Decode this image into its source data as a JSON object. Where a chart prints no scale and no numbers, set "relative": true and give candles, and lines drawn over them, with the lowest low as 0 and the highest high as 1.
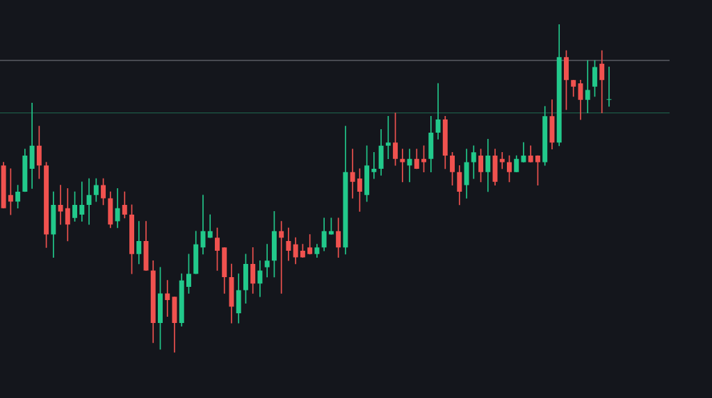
{
  "chart_data": {
    "type": "candlestick",
    "relative": true,
    "categories": [
      null,
      null,
      null,
      null,
      null,
      null,
      null,
      null,
      null,
      null,
      null,
      null,
      null,
      null,
      null,
      null,
      null,
      null,
      null,
      null,
      null,
      null,
      null,
      null,
      null,
      null,
      null,
      null,
      null,
      null,
      null,
      null,
      null,
      null,
      null,
      null,
      null,
      null,
      null,
      null,
      null,
      null,
      null,
      null,
      null,
      null,
      null,
      null,
      null,
      null,
      null,
      null,
      null,
      null,
      null,
      null,
      null,
      null,
      null,
      null,
      null,
      null,
      null,
      null,
      null,
      null,
      null,
      null,
      null,
      null,
      null,
      null,
      null,
      null,
      null,
      null,
      null,
      null,
      null,
      null,
      null,
      null,
      null,
      null,
      null,
      null,
      null,
      null,
      null,
      null,
      null,
      null,
      null,
      null
    ],
    "ohlc": [
      [
        0.57,
        0.58,
        0.44,
        0.44
      ],
      [
        0.48,
        0.56,
        0.42,
        0.46
      ],
      [
        0.46,
        0.51,
        0.44,
        0.49
      ],
      [
        0.49,
        0.62,
        0.49,
        0.6
      ],
      [
        0.56,
        0.76,
        0.5,
        0.63
      ],
      [
        0.63,
        0.69,
        0.53,
        0.57
      ],
      [
        0.57,
        0.58,
        0.32,
        0.36
      ],
      [
        0.36,
        0.49,
        0.29,
        0.45
      ],
      [
        0.45,
        0.51,
        0.39,
        0.43
      ],
      [
        0.44,
        0.5,
        0.34,
        0.39
      ],
      [
        0.41,
        0.49,
        0.4,
        0.45
      ],
      [
        0.42,
        0.52,
        0.4,
        0.45
      ],
      [
        0.45,
        0.53,
        0.39,
        0.48
      ],
      [
        0.48,
        0.53,
        0.46,
        0.51
      ],
      [
        0.51,
        0.53,
        0.45,
        0.47
      ],
      [
        0.47,
        0.49,
        0.38,
        0.39
      ],
      [
        0.4,
        0.5,
        0.38,
        0.44
      ],
      [
        0.45,
        0.49,
        0.41,
        0.42
      ],
      [
        0.42,
        0.45,
        0.24,
        0.3
      ],
      [
        0.3,
        0.4,
        0.27,
        0.34
      ],
      [
        0.34,
        0.4,
        0.25,
        0.25
      ],
      [
        0.25,
        0.28,
        0.03,
        0.09
      ],
      [
        0.09,
        0.26,
        0.01,
        0.18
      ],
      [
        0.18,
        0.22,
        0.11,
        0.16
      ],
      [
        0.17,
        0.17,
        0,
        0.09
      ],
      [
        0.09,
        0.24,
        0.08,
        0.22
      ],
      [
        0.2,
        0.3,
        0.18,
        0.24
      ],
      [
        0.24,
        0.37,
        0.24,
        0.33
      ],
      [
        0.32,
        0.48,
        0.3,
        0.37
      ],
      [
        0.35,
        0.42,
        0.35,
        0.37
      ],
      [
        0.35,
        0.38,
        0.25,
        0.31
      ],
      [
        0.32,
        0.32,
        0.18,
        0.23
      ],
      [
        0.23,
        0.27,
        0.09,
        0.14
      ],
      [
        0.12,
        0.24,
        0.09,
        0.19
      ],
      [
        0.19,
        0.3,
        0.15,
        0.27
      ],
      [
        0.27,
        0.32,
        0.18,
        0.21
      ],
      [
        0.21,
        0.28,
        0.17,
        0.25
      ],
      [
        0.26,
        0.33,
        0.23,
        0.28
      ],
      [
        0.28,
        0.43,
        0.23,
        0.37
      ],
      [
        0.37,
        0.4,
        0.18,
        0.35
      ],
      [
        0.34,
        0.38,
        0.28,
        0.31
      ],
      [
        0.33,
        0.35,
        0.27,
        0.29
      ],
      [
        0.31,
        0.33,
        0.29,
        0.29
      ],
      [
        0.32,
        0.36,
        0.3,
        0.3
      ],
      [
        0.3,
        0.33,
        0.29,
        0.32
      ],
      [
        0.32,
        0.41,
        0.31,
        0.37
      ],
      [
        0.36,
        0.41,
        0.36,
        0.37
      ],
      [
        0.37,
        0.41,
        0.29,
        0.32
      ],
      [
        0.32,
        0.69,
        0.3,
        0.55
      ],
      [
        0.55,
        0.62,
        0.47,
        0.52
      ],
      [
        0.53,
        0.56,
        0.43,
        0.49
      ],
      [
        0.48,
        0.63,
        0.46,
        0.57
      ],
      [
        0.55,
        0.61,
        0.53,
        0.56
      ],
      [
        0.56,
        0.68,
        0.54,
        0.63
      ],
      [
        0.63,
        0.72,
        0.59,
        0.64
      ],
      [
        0.64,
        0.73,
        0.57,
        0.59
      ],
      [
        0.59,
        0.62,
        0.52,
        0.58
      ],
      [
        0.57,
        0.62,
        0.52,
        0.59
      ],
      [
        0.59,
        0.62,
        0.56,
        0.56
      ],
      [
        0.59,
        0.63,
        0.55,
        0.58
      ],
      [
        0.59,
        0.72,
        0.55,
        0.67
      ],
      [
        0.67,
        0.82,
        0.65,
        0.71
      ],
      [
        0.71,
        0.72,
        0.56,
        0.6
      ],
      [
        0.6,
        0.61,
        0.51,
        0.55
      ],
      [
        0.55,
        0.57,
        0.45,
        0.49
      ],
      [
        0.51,
        0.62,
        0.47,
        0.58
      ],
      [
        0.58,
        0.63,
        0.53,
        0.61
      ],
      [
        0.6,
        0.62,
        0.52,
        0.55
      ],
      [
        0.55,
        0.65,
        0.49,
        0.6
      ],
      [
        0.6,
        0.62,
        0.51,
        0.52
      ],
      [
        0.59,
        0.61,
        0.56,
        0.58
      ],
      [
        0.58,
        0.6,
        0.52,
        0.55
      ],
      [
        0.55,
        0.6,
        0.55,
        0.59
      ],
      [
        0.58,
        0.64,
        0.58,
        0.6
      ],
      [
        0.6,
        0.63,
        0.58,
        0.58
      ],
      [
        0.6,
        0.6,
        0.51,
        0.58
      ],
      [
        0.58,
        0.75,
        0.57,
        0.72
      ],
      [
        0.72,
        0.77,
        0.62,
        0.64
      ],
      [
        0.64,
        1,
        0.63,
        0.9
      ],
      [
        0.9,
        0.92,
        0.74,
        0.83
      ],
      [
        0.83,
        0.83,
        0.78,
        0.81
      ],
      [
        0.82,
        0.83,
        0.71,
        0.77
      ],
      [
        0.77,
        0.89,
        0.73,
        0.8
      ],
      [
        0.81,
        0.89,
        0.78,
        0.87
      ],
      [
        0.88,
        0.92,
        0.73,
        0.83
      ],
      [
        0.77,
        0.87,
        0.75,
        0.77
      ],
      null,
      null,
      null,
      null,
      null,
      null,
      null,
      null
    ],
    "colors": [
      "#f0524f",
      "#f0524f",
      "#22c98b",
      "#22c98b",
      "#22c98b",
      "#f0524f",
      "#f0524f",
      "#22c98b",
      "#f0524f",
      "#f0524f",
      "#22c98b",
      "#22c98b",
      "#22c98b",
      "#22c98b",
      "#f0524f",
      "#f0524f",
      "#22c98b",
      "#f0524f",
      "#f0524f",
      "#22c98b",
      "#f0524f",
      "#f0524f",
      "#22c98b",
      "#f0524f",
      "#f0524f",
      "#22c98b",
      "#22c98b",
      "#22c98b",
      "#22c98b",
      "#22c98b",
      "#f0524f",
      "#f0524f",
      "#f0524f",
      "#22c98b",
      "#22c98b",
      "#f0524f",
      "#22c98b",
      "#22c98b",
      "#22c98b",
      "#f0524f",
      "#f0524f",
      "#f0524f",
      "#f0524f",
      "#f0524f",
      "#22c98b",
      "#22c98b",
      "#22c98b",
      "#f0524f",
      "#22c98b",
      "#f0524f",
      "#f0524f",
      "#22c98b",
      "#22c98b",
      "#22c98b",
      "#22c98b",
      "#f0524f",
      "#f0524f",
      "#22c98b",
      "#f0524f",
      "#f0524f",
      "#22c98b",
      "#22c98b",
      "#f0524f",
      "#f0524f",
      "#f0524f",
      "#22c98b",
      "#22c98b",
      "#f0524f",
      "#22c98b",
      "#f0524f",
      "#f0524f",
      "#f0524f",
      "#22c98b",
      "#22c98b",
      "#f0524f",
      "#f0524f",
      "#22c98b",
      "#f0524f",
      "#22c98b",
      "#f0524f",
      "#f0524f",
      "#f0524f",
      "#22c98b",
      "#22c98b",
      "#f0524f",
      "#22c98b",
      null,
      null,
      null,
      null,
      null,
      null,
      null,
      null
    ],
    "ref_lines": [
      {
        "axis": "y",
        "value": 0.89,
        "color": "#7d8088"
      },
      {
        "axis": "y",
        "value": 0.73,
        "color": "#1f6b52"
      }
    ]
  }
}
